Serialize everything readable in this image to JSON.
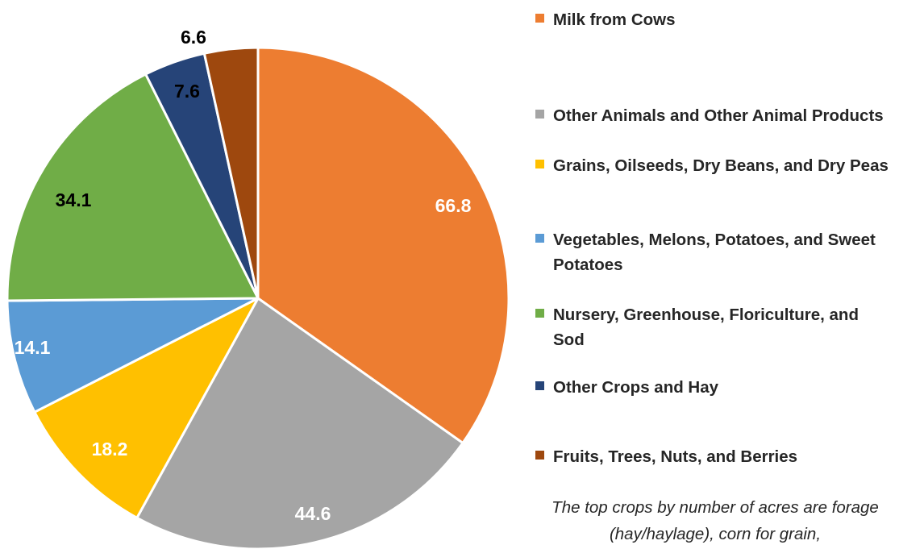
{
  "chart_data": {
    "type": "pie",
    "slices": [
      {
        "label": "Milk from Cows",
        "value": 66.8,
        "color": "#ED7D31",
        "label_color": "#FFFFFF"
      },
      {
        "label": "Other Animals and Other Animal Products",
        "value": 44.6,
        "color": "#A5A5A5",
        "label_color": "#FFFFFF"
      },
      {
        "label": "Grains, Oilseeds, Dry Beans, and Dry Peas",
        "value": 18.2,
        "color": "#FFC000",
        "label_color": "#FFFFFF"
      },
      {
        "label": "Vegetables, Melons, Potatoes, and Sweet Potatoes",
        "value": 14.1,
        "color": "#5B9BD5",
        "label_color": "#FFFFFF"
      },
      {
        "label": "Nursery, Greenhouse, Floriculture, and Sod",
        "value": 34.1,
        "color": "#70AD47",
        "label_color": "#000000"
      },
      {
        "label": "Other Crops and Hay",
        "value": 7.6,
        "color": "#264478",
        "label_color": "#000000"
      },
      {
        "label": "Fruits, Trees, Nuts, and Berries",
        "value": 6.6,
        "color": "#9E480E",
        "label_color": "#000000"
      }
    ],
    "data_labels": [
      "66.8",
      "44.6",
      "18.2",
      "14.1",
      "34.1",
      "7.6",
      "6.6"
    ],
    "legend_position": "right",
    "start_angle": "12 o'clock, clockwise"
  },
  "legend": {
    "items": [
      {
        "label": "Milk from Cows",
        "color": "#ED7D31"
      },
      {
        "label": "Other Animals and Other Animal Products",
        "color": "#A5A5A5"
      },
      {
        "label": "Grains, Oilseeds, Dry Beans, and Dry Peas",
        "color": "#FFC000"
      },
      {
        "label": "Vegetables, Melons, Potatoes, and Sweet Potatoes",
        "color": "#5B9BD5"
      },
      {
        "label": "Nursery, Greenhouse, Floriculture, and Sod",
        "color": "#70AD47"
      },
      {
        "label": "Other Crops and Hay",
        "color": "#264478"
      },
      {
        "label": "Fruits, Trees, Nuts, and Berries",
        "color": "#9E480E"
      }
    ]
  },
  "note": {
    "text": "The top crops by number of acres are forage (hay/haylage), corn for grain,"
  }
}
